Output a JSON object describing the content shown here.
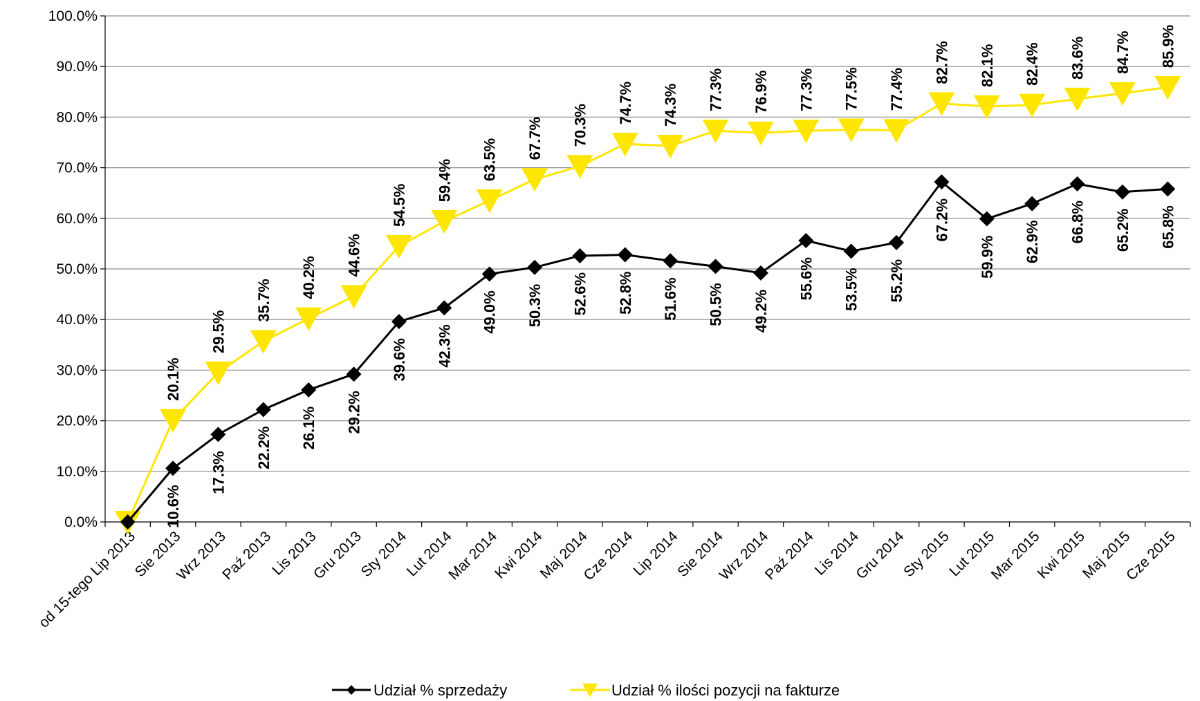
{
  "chart_data": {
    "type": "line",
    "title": "",
    "xlabel": "",
    "ylabel": "",
    "ylim": [
      0,
      100
    ],
    "y_ticks": [
      "0.0%",
      "10.0%",
      "20.0%",
      "30.0%",
      "40.0%",
      "50.0%",
      "60.0%",
      "70.0%",
      "80.0%",
      "90.0%",
      "100.0%"
    ],
    "grid": "horizontal",
    "legend_position": "bottom",
    "categories": [
      "od 15-tego Lip 2013",
      "Sie 2013",
      "Wrz 2013",
      "Paź 2013",
      "Lis 2013",
      "Gru 2013",
      "Sty 2014",
      "Lut 2014",
      "Mar 2014",
      "Kwi 2014",
      "Maj 2014",
      "Cze 2014",
      "Lip 2014",
      "Sie 2014",
      "Wrz 2014",
      "Paź 2014",
      "Lis 2014",
      "Gru 2014",
      "Sty 2015",
      "Lut 2015",
      "Mar 2015",
      "Kwi 2015",
      "Maj 2015",
      "Cze 2015"
    ],
    "series": [
      {
        "name": "Udział % sprzedaży",
        "color": "#000000",
        "marker": "diamond",
        "values": [
          0.0,
          10.6,
          17.3,
          22.2,
          26.1,
          29.2,
          39.6,
          42.3,
          49.0,
          50.3,
          52.6,
          52.8,
          51.6,
          50.5,
          49.2,
          55.6,
          53.5,
          55.2,
          67.2,
          59.9,
          62.9,
          66.8,
          65.2,
          65.8
        ],
        "labels": [
          "",
          "10.6%",
          "17.3%",
          "22.2%",
          "26.1%",
          "29.2%",
          "39.6%",
          "42.3%",
          "49.0%",
          "50.3%",
          "52.6%",
          "52.8%",
          "51.6%",
          "50.5%",
          "49.2%",
          "55.6%",
          "53.5%",
          "55.2%",
          "67.2%",
          "59.9%",
          "62.9%",
          "66.8%",
          "65.2%",
          "65.8%"
        ]
      },
      {
        "name": "Udział % ilości pozycji na fakturze",
        "color": "#FFE600",
        "marker": "triangle-down",
        "values": [
          0.0,
          20.1,
          29.5,
          35.7,
          40.2,
          44.6,
          54.5,
          59.4,
          63.5,
          67.7,
          70.3,
          74.7,
          74.3,
          77.3,
          76.9,
          77.3,
          77.5,
          77.4,
          82.7,
          82.1,
          82.4,
          83.6,
          84.7,
          85.9
        ],
        "labels": [
          "",
          "20.1%",
          "29.5%",
          "35.7%",
          "40.2%",
          "44.6%",
          "54.5%",
          "59.4%",
          "63.5%",
          "67.7%",
          "70.3%",
          "74.7%",
          "74.3%",
          "77.3%",
          "76.9%",
          "77.3%",
          "77.5%",
          "77.4%",
          "82.7%",
          "82.1%",
          "82.4%",
          "83.6%",
          "84.7%",
          "85.9%"
        ]
      }
    ]
  }
}
